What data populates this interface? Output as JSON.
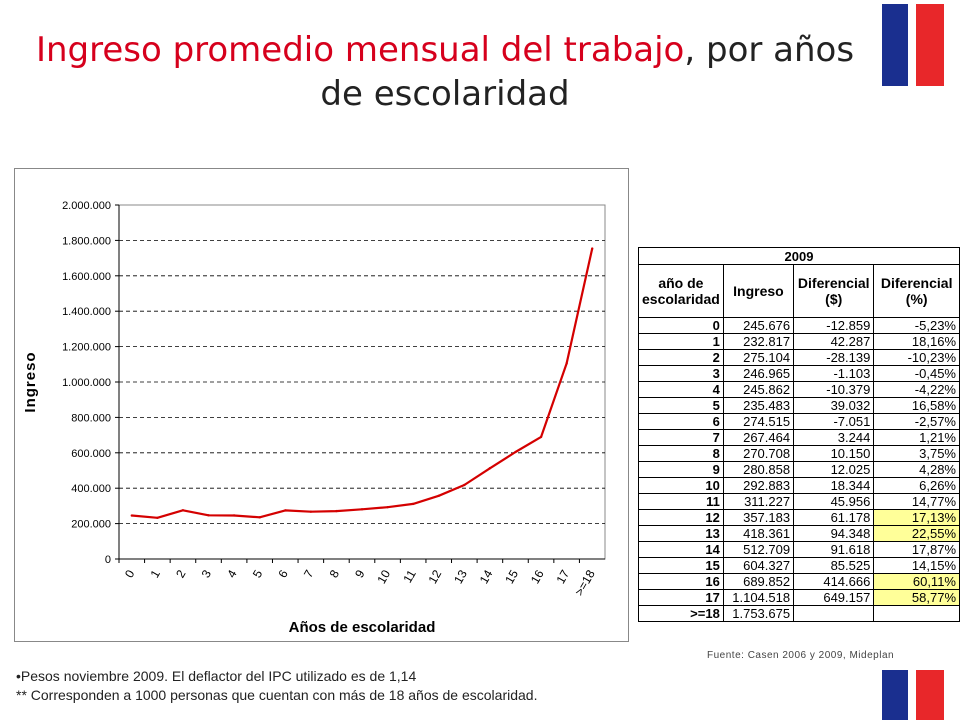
{
  "title": {
    "highlight": "Ingreso promedio mensual del trabajo",
    "rest": ", por años de escolaridad"
  },
  "colors": {
    "title_accent": "#d6001c",
    "line": "#d40000",
    "flag_blue": "#1a2f8f",
    "flag_red": "#e8272a",
    "highlight_cell": "#ffff99"
  },
  "chart_data": {
    "type": "line",
    "title": "",
    "xlabel": "Años de escolaridad",
    "ylabel": "Ingreso",
    "categories": [
      "0",
      "1",
      "2",
      "3",
      "4",
      "5",
      "6",
      "7",
      "8",
      "9",
      "10",
      "11",
      "12",
      "13",
      "14",
      "15",
      "16",
      "17",
      ">=18"
    ],
    "series": [
      {
        "values": [
          245676,
          232817,
          275104,
          246965,
          245862,
          235483,
          274515,
          267464,
          270708,
          280858,
          292883,
          311227,
          357183,
          418361,
          512709,
          604327,
          689852,
          1104518,
          1753675
        ]
      }
    ],
    "y_ticks": [
      "0",
      "200.000",
      "400.000",
      "600.000",
      "800.000",
      "1.000.000",
      "1.200.000",
      "1.400.000",
      "1.600.000",
      "1.800.000",
      "2.000.000"
    ],
    "ylim": [
      0,
      2000000
    ],
    "grid": "horizontal dashed",
    "legend": "none"
  },
  "table": {
    "title": "2009",
    "headers": [
      "año de escolaridad",
      "Ingreso",
      "Diferencial ($)",
      "Diferencial (%)"
    ],
    "rows": [
      {
        "year": "0",
        "ingreso": "245.676",
        "dif": "-12.859",
        "pct": "-5,23%",
        "hl": false
      },
      {
        "year": "1",
        "ingreso": "232.817",
        "dif": "42.287",
        "pct": "18,16%",
        "hl": false
      },
      {
        "year": "2",
        "ingreso": "275.104",
        "dif": "-28.139",
        "pct": "-10,23%",
        "hl": false
      },
      {
        "year": "3",
        "ingreso": "246.965",
        "dif": "-1.103",
        "pct": "-0,45%",
        "hl": false
      },
      {
        "year": "4",
        "ingreso": "245.862",
        "dif": "-10.379",
        "pct": "-4,22%",
        "hl": false
      },
      {
        "year": "5",
        "ingreso": "235.483",
        "dif": "39.032",
        "pct": "16,58%",
        "hl": false
      },
      {
        "year": "6",
        "ingreso": "274.515",
        "dif": "-7.051",
        "pct": "-2,57%",
        "hl": false
      },
      {
        "year": "7",
        "ingreso": "267.464",
        "dif": "3.244",
        "pct": "1,21%",
        "hl": false
      },
      {
        "year": "8",
        "ingreso": "270.708",
        "dif": "10.150",
        "pct": "3,75%",
        "hl": false
      },
      {
        "year": "9",
        "ingreso": "280.858",
        "dif": "12.025",
        "pct": "4,28%",
        "hl": false
      },
      {
        "year": "10",
        "ingreso": "292.883",
        "dif": "18.344",
        "pct": "6,26%",
        "hl": false
      },
      {
        "year": "11",
        "ingreso": "311.227",
        "dif": "45.956",
        "pct": "14,77%",
        "hl": false
      },
      {
        "year": "12",
        "ingreso": "357.183",
        "dif": "61.178",
        "pct": "17,13%",
        "hl": true
      },
      {
        "year": "13",
        "ingreso": "418.361",
        "dif": "94.348",
        "pct": "22,55%",
        "hl": true
      },
      {
        "year": "14",
        "ingreso": "512.709",
        "dif": "91.618",
        "pct": "17,87%",
        "hl": false
      },
      {
        "year": "15",
        "ingreso": "604.327",
        "dif": "85.525",
        "pct": "14,15%",
        "hl": false
      },
      {
        "year": "16",
        "ingreso": "689.852",
        "dif": "414.666",
        "pct": "60,11%",
        "hl": true
      },
      {
        "year": "17",
        "ingreso": "1.104.518",
        "dif": "649.157",
        "pct": "58,77%",
        "hl": true
      },
      {
        "year": ">=18",
        "ingreso": "1.753.675",
        "dif": "",
        "pct": "",
        "hl": false
      }
    ]
  },
  "source": "Fuente: Casen 2006 y 2009, Mideplan",
  "notes": [
    "•Pesos noviembre 2009. El deflactor del IPC utilizado es de 1,14",
    "** Corresponden a 1000 personas que cuentan con más de 18 años de escolaridad."
  ]
}
